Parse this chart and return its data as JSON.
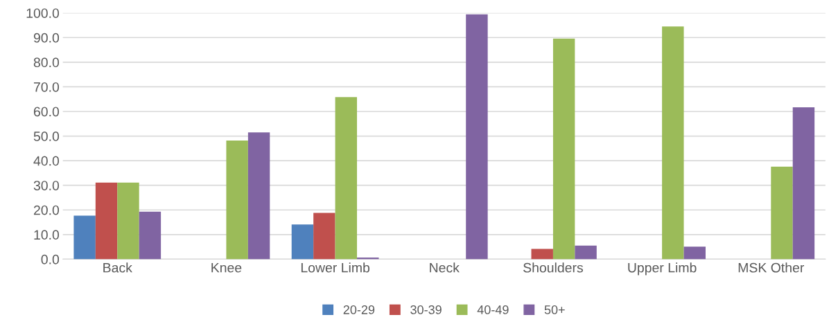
{
  "chart_data": {
    "type": "bar",
    "categories": [
      "Back",
      "Knee",
      "Lower Limb",
      "Neck",
      "Shoulders",
      "Upper Limb",
      "MSK Other"
    ],
    "series": [
      {
        "name": "20-29",
        "color": "#4f81bd",
        "values": [
          17.7,
          0,
          14.1,
          0,
          0,
          0,
          0
        ]
      },
      {
        "name": "30-39",
        "color": "#c0504d",
        "values": [
          31.1,
          0,
          18.8,
          0,
          4.2,
          0,
          0
        ]
      },
      {
        "name": "40-49",
        "color": "#9bbb59",
        "values": [
          31.1,
          48.2,
          65.8,
          0,
          89.6,
          94.5,
          37.6
        ]
      },
      {
        "name": "50+",
        "color": "#8064a2",
        "values": [
          19.3,
          51.5,
          0.7,
          99.4,
          5.5,
          5.1,
          61.7
        ]
      }
    ],
    "ylim": [
      0,
      100
    ],
    "yticks": [
      {
        "value": 0,
        "label": "0.0"
      },
      {
        "value": 10,
        "label": "10.0"
      },
      {
        "value": 20,
        "label": "20.0"
      },
      {
        "value": 30,
        "label": "30.0"
      },
      {
        "value": 40,
        "label": "40.0"
      },
      {
        "value": 50,
        "label": "50.0"
      },
      {
        "value": 60,
        "label": "60.0"
      },
      {
        "value": 70,
        "label": "70.0"
      },
      {
        "value": 80,
        "label": "80.0"
      },
      {
        "value": 90,
        "label": "90.0"
      },
      {
        "value": 100,
        "label": "100.0"
      }
    ],
    "grid": "y",
    "legend": "bottom"
  }
}
